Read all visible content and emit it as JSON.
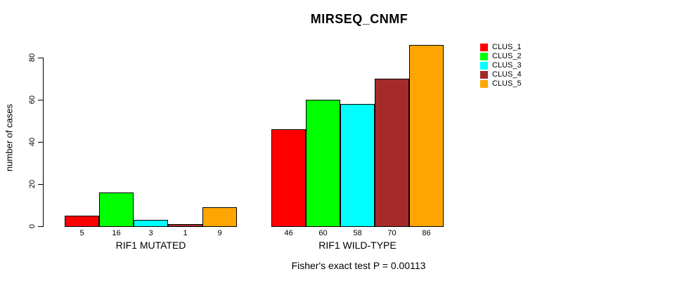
{
  "chart_data": {
    "type": "bar",
    "title": "MIRSEQ_CNMF",
    "ylabel": "number of cases",
    "xlabel": "",
    "subtitle": "Fisher's exact test P = 0.00113",
    "ylim": [
      0,
      86
    ],
    "yticks": [
      0,
      20,
      40,
      60,
      80
    ],
    "grid": false,
    "legend_position": "right",
    "categories": [
      "RIF1 MUTATED",
      "RIF1 WILD-TYPE"
    ],
    "series": [
      {
        "name": "CLUS_1",
        "color": "#FF0000",
        "values": [
          5,
          46
        ]
      },
      {
        "name": "CLUS_2",
        "color": "#00FF00",
        "values": [
          16,
          60
        ]
      },
      {
        "name": "CLUS_3",
        "color": "#00FFFF",
        "values": [
          3,
          58
        ]
      },
      {
        "name": "CLUS_4",
        "color": "#A52A2A",
        "values": [
          1,
          70
        ]
      },
      {
        "name": "CLUS_5",
        "color": "#FFA500",
        "values": [
          9,
          86
        ]
      }
    ],
    "bar_value_labels": {
      "RIF1 MUTATED": [
        5,
        16,
        3,
        1,
        9
      ],
      "RIF1 WILD-TYPE": [
        46,
        60,
        58,
        70,
        86
      ]
    }
  }
}
